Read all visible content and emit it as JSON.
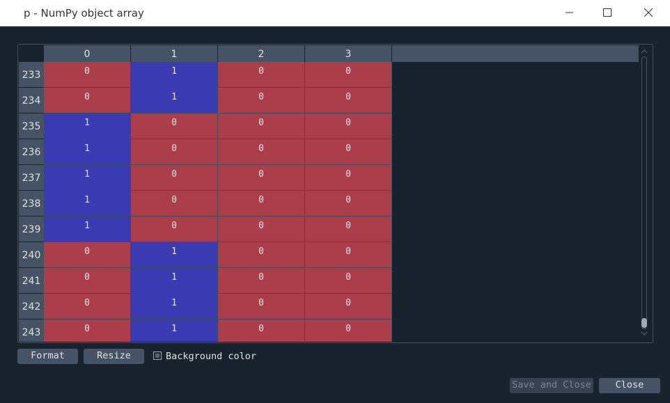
{
  "window": {
    "title": "p - NumPy object array",
    "controls": [
      "minimize-icon",
      "maximize-icon",
      "close-icon"
    ]
  },
  "table": {
    "columns": [
      "0",
      "1",
      "2",
      "3"
    ],
    "rows": [
      {
        "index": "233",
        "values": [
          "0",
          "1",
          "0",
          "0"
        ]
      },
      {
        "index": "234",
        "values": [
          "0",
          "1",
          "0",
          "0"
        ]
      },
      {
        "index": "235",
        "values": [
          "1",
          "0",
          "0",
          "0"
        ]
      },
      {
        "index": "236",
        "values": [
          "1",
          "0",
          "0",
          "0"
        ]
      },
      {
        "index": "237",
        "values": [
          "1",
          "0",
          "0",
          "0"
        ]
      },
      {
        "index": "238",
        "values": [
          "1",
          "0",
          "0",
          "0"
        ]
      },
      {
        "index": "239",
        "values": [
          "1",
          "0",
          "0",
          "0"
        ]
      },
      {
        "index": "240",
        "values": [
          "0",
          "1",
          "0",
          "0"
        ]
      },
      {
        "index": "241",
        "values": [
          "0",
          "1",
          "0",
          "0"
        ]
      },
      {
        "index": "242",
        "values": [
          "0",
          "1",
          "0",
          "0"
        ]
      },
      {
        "index": "243",
        "values": [
          "0",
          "1",
          "0",
          "0"
        ]
      }
    ],
    "colors": {
      "value_1": "#3a3bb3",
      "value_0": "#ab3e4a"
    }
  },
  "controls": {
    "format_label": "Format",
    "resize_label": "Resize",
    "background_color_label": "Background color",
    "background_color_checked": true,
    "save_label": "Save and Close",
    "close_label": "Close"
  },
  "scrollbar": {
    "position_fraction": 1.0
  }
}
